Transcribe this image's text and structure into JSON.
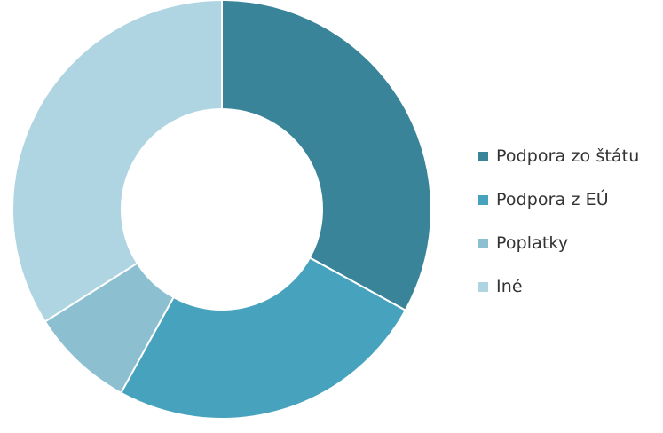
{
  "chart_data": {
    "type": "pie",
    "variant": "donut",
    "title": "",
    "categories": [
      "Podpora zo štátu",
      "Podpora z EÚ",
      "Poplatky",
      "Iné"
    ],
    "values": [
      33,
      25,
      8,
      34
    ],
    "value_unit": "percent",
    "colors": [
      "#3a8499",
      "#47a3bd",
      "#8cbfd0",
      "#b0d5e2"
    ],
    "legend": {
      "placement": "right",
      "items": [
        {
          "label": "Podpora zo štátu",
          "color": "#3a8499"
        },
        {
          "label": "Podpora z EÚ",
          "color": "#47a3bd"
        },
        {
          "label": "Poplatky",
          "color": "#8cbfd0"
        },
        {
          "label": "Iné",
          "color": "#b0d5e2"
        }
      ]
    }
  }
}
